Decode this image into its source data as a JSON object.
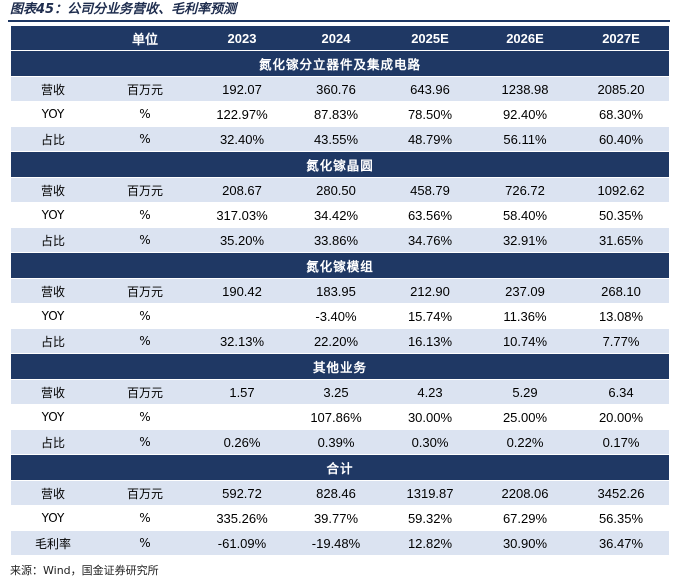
{
  "title": "图表45：公司分业务营收、毛利率预测",
  "header": [
    "",
    "单位",
    "2023",
    "2024",
    "2025E",
    "2026E",
    "2027E"
  ],
  "sections": [
    {
      "name": "氮化镓分立器件及集成电路",
      "rows": [
        {
          "label": "营收",
          "unit": "百万元",
          "values": [
            "192.07",
            "360.76",
            "643.96",
            "1238.98",
            "2085.20"
          ]
        },
        {
          "label": "YOY",
          "unit": "%",
          "values": [
            "122.97%",
            "87.83%",
            "78.50%",
            "92.40%",
            "68.30%"
          ]
        },
        {
          "label": "占比",
          "unit": "%",
          "values": [
            "32.40%",
            "43.55%",
            "48.79%",
            "56.11%",
            "60.40%"
          ]
        }
      ]
    },
    {
      "name": "氮化镓晶圆",
      "rows": [
        {
          "label": "营收",
          "unit": "百万元",
          "values": [
            "208.67",
            "280.50",
            "458.79",
            "726.72",
            "1092.62"
          ]
        },
        {
          "label": "YOY",
          "unit": "%",
          "values": [
            "317.03%",
            "34.42%",
            "63.56%",
            "58.40%",
            "50.35%"
          ]
        },
        {
          "label": "占比",
          "unit": "%",
          "values": [
            "35.20%",
            "33.86%",
            "34.76%",
            "32.91%",
            "31.65%"
          ]
        }
      ]
    },
    {
      "name": "氮化镓模组",
      "rows": [
        {
          "label": "营收",
          "unit": "百万元",
          "values": [
            "190.42",
            "183.95",
            "212.90",
            "237.09",
            "268.10"
          ]
        },
        {
          "label": "YOY",
          "unit": "%",
          "values": [
            "",
            "-3.40%",
            "15.74%",
            "11.36%",
            "13.08%"
          ]
        },
        {
          "label": "占比",
          "unit": "%",
          "values": [
            "32.13%",
            "22.20%",
            "16.13%",
            "10.74%",
            "7.77%"
          ]
        }
      ]
    },
    {
      "name": "其他业务",
      "rows": [
        {
          "label": "营收",
          "unit": "百万元",
          "values": [
            "1.57",
            "3.25",
            "4.23",
            "5.29",
            "6.34"
          ]
        },
        {
          "label": "YOY",
          "unit": "%",
          "values": [
            "",
            "107.86%",
            "30.00%",
            "25.00%",
            "20.00%"
          ]
        },
        {
          "label": "占比",
          "unit": "%",
          "values": [
            "0.26%",
            "0.39%",
            "0.30%",
            "0.22%",
            "0.17%"
          ]
        }
      ]
    },
    {
      "name": "合计",
      "rows": [
        {
          "label": "营收",
          "unit": "百万元",
          "values": [
            "592.72",
            "828.46",
            "1319.87",
            "2208.06",
            "3452.26"
          ]
        },
        {
          "label": "YOY",
          "unit": "%",
          "values": [
            "335.26%",
            "39.77%",
            "59.32%",
            "67.29%",
            "56.35%"
          ]
        },
        {
          "label": "毛利率",
          "unit": "%",
          "values": [
            "-61.09%",
            "-19.48%",
            "12.82%",
            "30.90%",
            "36.47%"
          ]
        }
      ]
    }
  ],
  "source": "来源：Wind，国金证券研究所"
}
